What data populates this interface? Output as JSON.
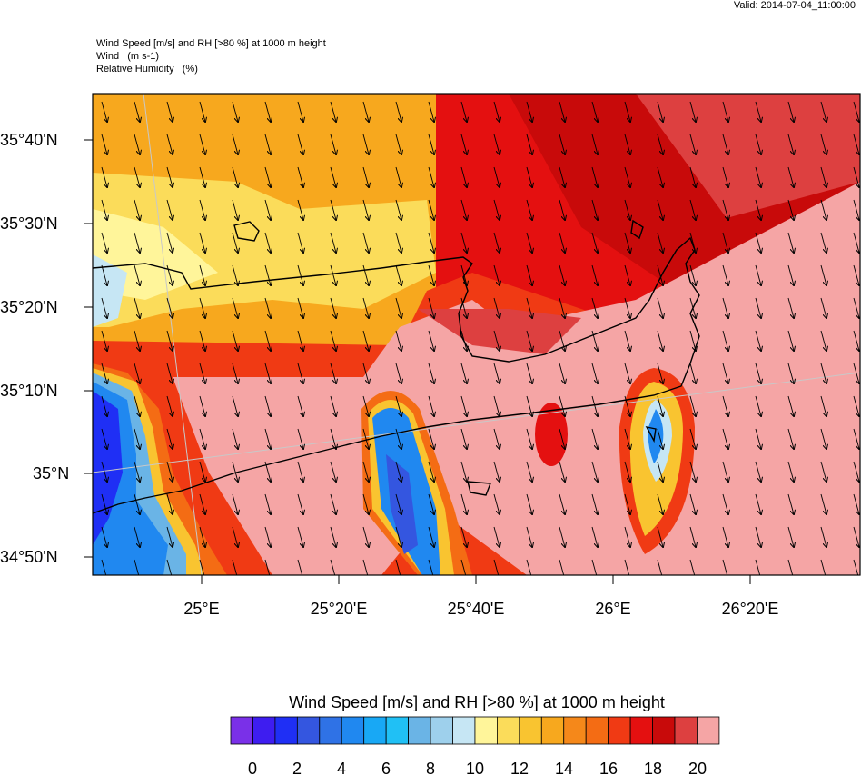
{
  "header": {
    "valid": "Valid: 2014-07-04_11:00:00",
    "line1": "Wind Speed [m/s] and RH [>80 %] at 1000 m height",
    "line2": "Wind   (m s-1)",
    "line3": "Relative Humidity   (%)"
  },
  "map": {
    "lat_labels": [
      "35°40'N",
      "35°30'N",
      "35°20'N",
      "35°10'N",
      "35°N",
      "34°50'N"
    ],
    "lon_labels": [
      "25°E",
      "25°20'E",
      "25°40'E",
      "26°E",
      "26°20'E"
    ],
    "wind_direction": "from north-northwest (arrows pointing south-southeast)"
  },
  "colorbar": {
    "title": "Wind Speed [m/s] and RH [>80 %] at 1000 m height",
    "tick_labels": [
      "0",
      "2",
      "4",
      "6",
      "8",
      "10",
      "12",
      "14",
      "16",
      "18",
      "20"
    ],
    "colors": [
      "#7a30e8",
      "#3e1df0",
      "#1f2ff5",
      "#3456e0",
      "#2f72e6",
      "#2088f0",
      "#18a8f5",
      "#20c0f5",
      "#6ab4e6",
      "#9ed0ec",
      "#c6e6f4",
      "#fff59a",
      "#fbdc5a",
      "#f9c430",
      "#f7a81e",
      "#f5881a",
      "#f46c14",
      "#f03a14",
      "#e41010",
      "#c80a0a",
      "#dd4040",
      "#f5a5a5"
    ]
  }
}
